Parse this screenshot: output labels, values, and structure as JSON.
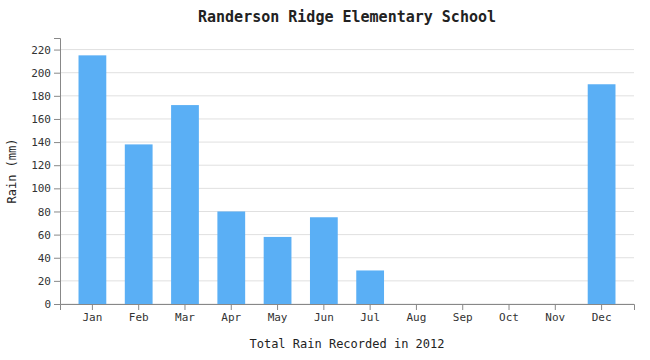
{
  "chart_data": {
    "type": "bar",
    "title": "Randerson Ridge Elementary School",
    "xlabel": "Total Rain Recorded in 2012",
    "ylabel": "Rain (mm)",
    "categories": [
      "Jan",
      "Feb",
      "Mar",
      "Apr",
      "May",
      "Jun",
      "Jul",
      "Aug",
      "Sep",
      "Oct",
      "Nov",
      "Dec"
    ],
    "values": [
      215,
      138,
      172,
      80,
      58,
      75,
      29,
      0,
      0,
      0,
      0,
      190
    ],
    "color": "#5aaff5",
    "ylim": [
      0,
      230
    ],
    "yticks": [
      0,
      20,
      40,
      60,
      80,
      100,
      120,
      140,
      160,
      180,
      200,
      220
    ],
    "grid": true
  }
}
